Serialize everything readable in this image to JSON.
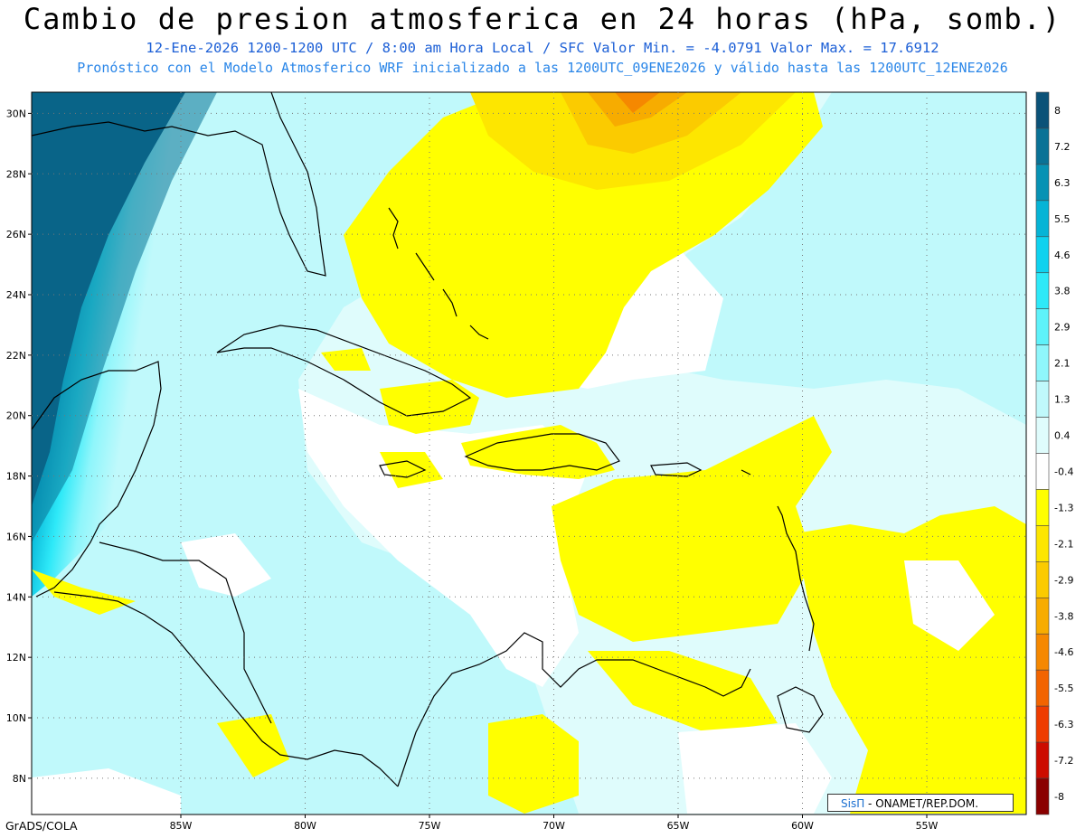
{
  "header": {
    "title": "Cambio de presion atmosferica en 24 horas (hPa, somb.)",
    "subtitle_line1": "12-Ene-2026   1200-1200 UTC / 8:00 am Hora Local / SFC     Valor Min. = -4.0791  Valor Max. = 17.6912",
    "subtitle_line2": "Pronóstico con el Modelo Atmosferico WRF inicializado a las 1200UTC_09ENE2026 y válido hasta las  1200UTC_12ENE2026"
  },
  "map": {
    "lon_range": [
      -91,
      -51
    ],
    "lat_range": [
      6.8,
      30.7
    ],
    "lat_ticks": [
      8,
      10,
      12,
      14,
      16,
      18,
      20,
      22,
      24,
      26,
      28,
      30
    ],
    "lat_tick_labels": [
      "8N",
      "10N",
      "12N",
      "14N",
      "16N",
      "18N",
      "20N",
      "22N",
      "24N",
      "26N",
      "28N",
      "30N"
    ],
    "lon_ticks": [
      -85,
      -80,
      -75,
      -70,
      -65,
      -60,
      -55
    ],
    "lon_tick_labels": [
      "85W",
      "80W",
      "75W",
      "70W",
      "65W",
      "60W",
      "55W"
    ],
    "grid": "dotted"
  },
  "colorbar": {
    "labels": [
      "8",
      "7.2",
      "6.3",
      "5.5",
      "4.6",
      "3.8",
      "2.9",
      "2.1",
      "1.3",
      "0.4",
      "-0.4",
      "-1.3",
      "-2.1",
      "-2.9",
      "-3.8",
      "-4.6",
      "-5.5",
      "-6.3",
      "-7.2",
      "-8"
    ],
    "colors": [
      "#0b5278",
      "#0a7296",
      "#0792b4",
      "#06b4d6",
      "#0fd2ef",
      "#2ee9f8",
      "#5ef2fa",
      "#8ff6fb",
      "#c0f9fb",
      "#dffcfc",
      "#ffffff",
      "#ffff00",
      "#fde600",
      "#fbcb00",
      "#f7ac00",
      "#f58800",
      "#f26400",
      "#ee3c00",
      "#cc0c00",
      "#8a0000"
    ]
  },
  "credit": {
    "brand": "SisΠ",
    "text": " - ONAMET/REP.DOM."
  },
  "footer": "GrADS/COLA"
}
